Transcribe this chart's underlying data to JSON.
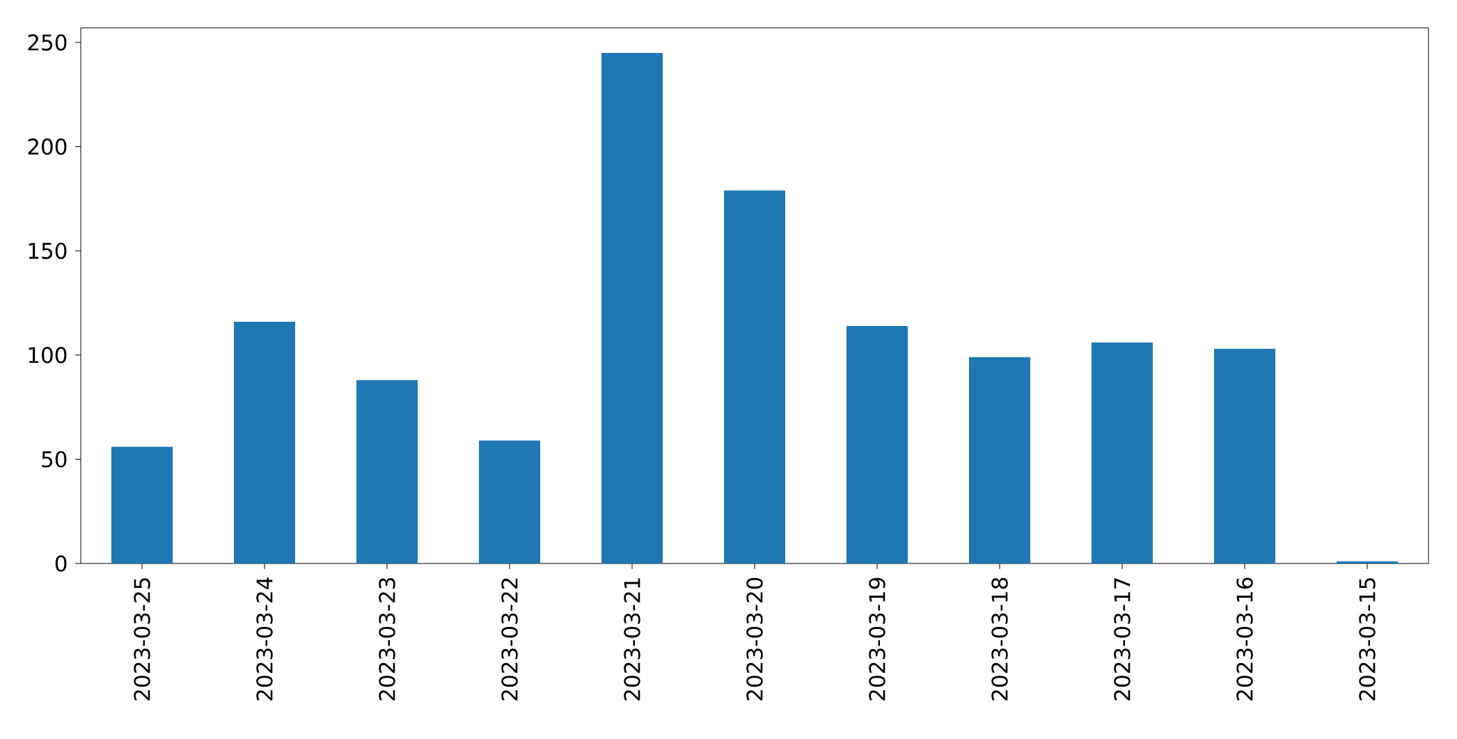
{
  "chart_data": {
    "type": "bar",
    "categories": [
      "2023-03-25",
      "2023-03-24",
      "2023-03-23",
      "2023-03-22",
      "2023-03-21",
      "2023-03-20",
      "2023-03-19",
      "2023-03-18",
      "2023-03-17",
      "2023-03-16",
      "2023-03-15"
    ],
    "values": [
      56,
      116,
      88,
      59,
      245,
      179,
      114,
      99,
      106,
      103,
      1
    ],
    "color": "#1f77b4",
    "ylim": [
      0,
      257
    ],
    "yticks": [
      0,
      50,
      100,
      150,
      200,
      250
    ]
  }
}
